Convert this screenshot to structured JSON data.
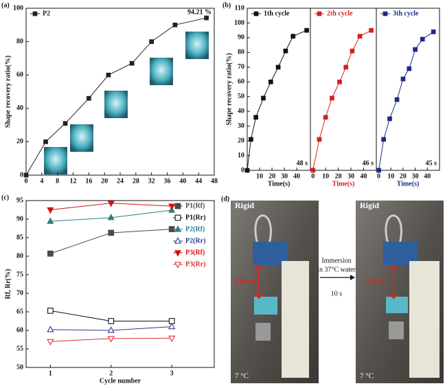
{
  "chart_data": [
    {
      "type": "line",
      "label": "(a)",
      "ylabel": "Shape recovery ratio(%)",
      "annotation": "94.21 %",
      "legend": "upper left",
      "xlim": [
        0,
        48
      ],
      "xticks": [
        0,
        4,
        8,
        12,
        16,
        20,
        24,
        28,
        32,
        36,
        40,
        44,
        48
      ],
      "ylim": [
        0,
        100
      ],
      "yticks": [
        0,
        20,
        40,
        60,
        80,
        100
      ],
      "series": [
        {
          "name": "P2",
          "color": "#222222",
          "marker": "square",
          "filled": true,
          "x": [
            0,
            5,
            10,
            16,
            21,
            27,
            32,
            38,
            46
          ],
          "values": [
            0,
            20,
            31,
            46,
            60,
            67,
            80,
            90,
            94.21
          ]
        }
      ]
    },
    {
      "type": "line",
      "label": "(b)",
      "ylabel": "Shape recovery ratio(%)",
      "xlabel": "Time(s)",
      "annotation": "48 s",
      "legend": "upper left",
      "xlim": [
        0,
        51
      ],
      "xticks": [
        10,
        20,
        30,
        40
      ],
      "ylim": [
        0,
        110
      ],
      "yticks": [
        0,
        10,
        20,
        30,
        40,
        50,
        60,
        70,
        80,
        90,
        100,
        110
      ],
      "series": [
        {
          "name": "1th cycle",
          "color": "#111111",
          "marker": "square",
          "filled": true,
          "x": [
            0,
            3,
            7,
            13,
            19,
            25,
            31,
            37,
            48
          ],
          "values": [
            0,
            21,
            36,
            49,
            60,
            70,
            81,
            91,
            95
          ]
        }
      ]
    },
    {
      "type": "line",
      "xlabel": "Time(s)",
      "annotation": "46 s",
      "legend": "upper left",
      "xlim": [
        -2,
        50
      ],
      "xticks": [
        0,
        10,
        20,
        30,
        40
      ],
      "ylim": [
        0,
        110
      ],
      "series": [
        {
          "name": "2th cycle",
          "color": "#d42020",
          "marker": "square",
          "filled": true,
          "x": [
            0,
            5,
            10,
            15,
            21,
            26,
            31,
            37,
            46
          ],
          "values": [
            0,
            21,
            36,
            49,
            60,
            70,
            81,
            91,
            95
          ]
        }
      ]
    },
    {
      "type": "line",
      "xlabel": "Time(s)",
      "annotation": "45 s",
      "legend": "upper left",
      "xlim": [
        -2,
        50
      ],
      "xticks": [
        0,
        10,
        20,
        30,
        40
      ],
      "ylim": [
        0,
        110
      ],
      "series": [
        {
          "name": "3th cycle",
          "color": "#1a2a8a",
          "marker": "square",
          "filled": true,
          "x": [
            0,
            4,
            9,
            15,
            20,
            25,
            30,
            36,
            45
          ],
          "values": [
            0,
            21,
            35,
            48,
            62,
            69,
            82,
            89,
            94
          ]
        }
      ]
    },
    {
      "type": "line",
      "label": "(c)",
      "ylabel": "Rf, Rr(%)",
      "xlabel": "Cycle number",
      "legend": "upper right",
      "xlim": [
        0.6,
        3.7
      ],
      "xticks": [
        1,
        2,
        3
      ],
      "x": [
        1,
        2,
        3
      ],
      "ylim": [
        50,
        95
      ],
      "yticks": [
        50,
        55,
        60,
        65,
        70,
        75,
        80,
        85,
        90,
        95
      ],
      "series": [
        {
          "name": "P1(Rf)",
          "color": "#4a4a4a",
          "marker": "square",
          "filled": true,
          "values": [
            80.7,
            86.3,
            87.3
          ]
        },
        {
          "name": "P1(Rr)",
          "color": "#111111",
          "marker": "square",
          "filled": false,
          "values": [
            65.3,
            62.5,
            62.5
          ]
        },
        {
          "name": "P2(Rf)",
          "color": "#2e7f80",
          "marker": "triangle",
          "filled": true,
          "values": [
            89.4,
            90.4,
            92.4
          ]
        },
        {
          "name": "P2(Rr)",
          "color": "#2a3a8a",
          "marker": "triangle",
          "filled": false,
          "values": [
            60.2,
            60.0,
            61.0
          ]
        },
        {
          "name": "P3(Rf)",
          "color": "#d41010",
          "marker": "triangle-down",
          "filled": true,
          "values": [
            92.5,
            94.3,
            93.5
          ]
        },
        {
          "name": "P3(Rr)",
          "color": "#e03030",
          "marker": "triangle-down",
          "filled": false,
          "values": [
            57.0,
            57.8,
            57.9
          ]
        }
      ]
    }
  ],
  "photo_panel": {
    "label": "(d)",
    "left": {
      "state": "Rigid",
      "gap": "1.6 cm",
      "temp": "7 °C"
    },
    "right": {
      "state": "Rigid",
      "gap": "2.0 cm",
      "temp": "7 °C"
    },
    "arrow": {
      "line1": "Immersion",
      "line2": "in 37°C water",
      "time": "10 s"
    }
  }
}
